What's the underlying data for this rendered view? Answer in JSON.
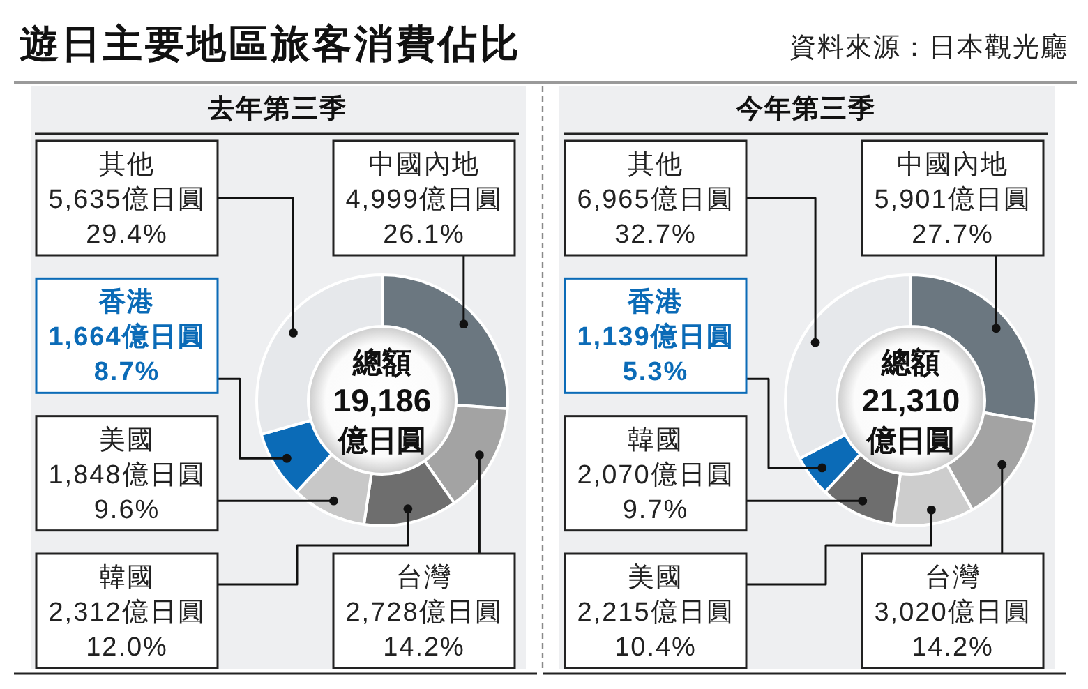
{
  "chart_data": [
    {
      "type": "donut",
      "title": "遊日主要地區旅客消費佔比",
      "subtitle": "去年第三季",
      "categories": [
        "中國內地",
        "台灣",
        "韓國",
        "美國",
        "香港",
        "其他"
      ],
      "values": [
        4999,
        2728,
        2312,
        1848,
        1664,
        5635
      ],
      "value_labels": [
        "4,999億日圓\n26.1%",
        "2,728億日圓\n14.2%",
        "2,312億日圓\n12.0%",
        "1,848億日圓\n9.6%",
        "1,664億日圓\n8.7%",
        "5,635億日圓\n29.4%"
      ],
      "colors": [
        "#6b7780",
        "#a3a3a3",
        "#6e6e6e",
        "#c8c8c8",
        "#0b6bb7",
        "#e6e8eb"
      ],
      "annotations": [
        "總額\n19,186\n億日圓"
      ]
    },
    {
      "type": "donut",
      "subtitle": "今年第三季",
      "categories": [
        "中國內地",
        "台灣",
        "美國",
        "韓國",
        "香港",
        "其他"
      ],
      "values": [
        5901,
        3020,
        2215,
        2070,
        1139,
        6965
      ],
      "value_labels": [
        "5,901億日圓\n27.7%",
        "3,020億日圓\n14.2%",
        "2,215億日圓\n10.4%",
        "2,070億日圓\n9.7%",
        "1,139億日圓\n5.3%",
        "6,965億日圓\n32.7%"
      ],
      "colors": [
        "#6b7780",
        "#a3a3a3",
        "#cdcdcd",
        "#6e6e6e",
        "#0b6bb7",
        "#e6e8eb"
      ],
      "annotations": [
        "總額\n21,310\n億日圓",
        "資料來源：日本觀光廳"
      ]
    }
  ]
}
